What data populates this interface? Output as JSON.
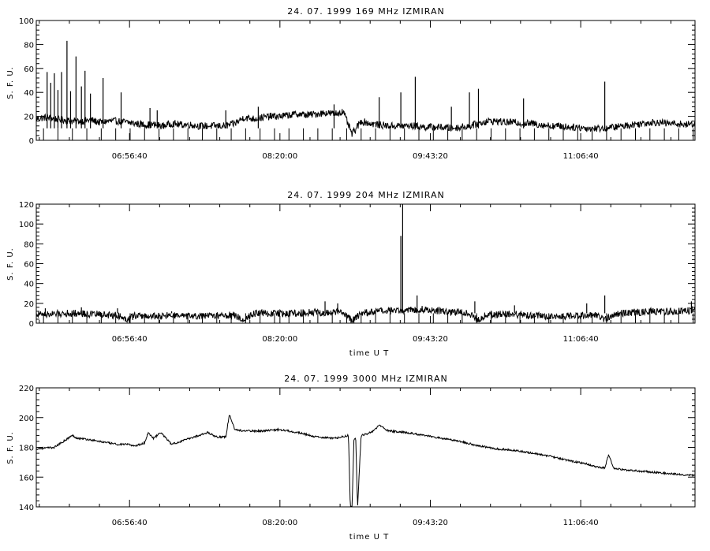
{
  "chart_data": [
    {
      "type": "line",
      "title": "24. 07. 1999   169 MHz   IZMIRAN",
      "xlabel": "",
      "ylabel": "S. F. U.",
      "ylim": [
        0,
        100
      ],
      "yticks": [
        0,
        20,
        40,
        60,
        80,
        100
      ],
      "xlim": [
        "06:05:00",
        "12:10:00"
      ],
      "xtick_labels": [
        "06:56:40",
        "08:20:00",
        "09:43:20",
        "11:06:40"
      ],
      "series": [
        {
          "x": [
            "06:05",
            "06:10",
            "06:15",
            "06:20",
            "06:25",
            "06:30",
            "06:35",
            "06:40",
            "06:45",
            "06:50",
            "06:55",
            "07:00",
            "07:05",
            "07:10",
            "07:15",
            "07:20",
            "07:25",
            "07:30",
            "07:35",
            "07:40",
            "07:45",
            "07:50",
            "07:55",
            "08:00",
            "08:05",
            "08:10",
            "08:15",
            "08:20",
            "08:25",
            "08:30",
            "08:35",
            "08:40",
            "08:45",
            "08:50",
            "08:55",
            "09:00",
            "09:05",
            "09:10",
            "09:15",
            "09:20",
            "09:25",
            "09:30",
            "09:35",
            "09:40",
            "09:45",
            "09:50",
            "09:55",
            "10:00",
            "10:05",
            "10:10",
            "10:15",
            "10:20",
            "10:25",
            "10:30",
            "10:35",
            "10:40",
            "10:45",
            "10:50",
            "10:55",
            "11:00",
            "11:05",
            "11:10",
            "11:15",
            "11:20",
            "11:25",
            "11:30",
            "11:35",
            "11:40",
            "11:45",
            "11:50",
            "11:55",
            "12:00",
            "12:05",
            "12:10"
          ],
          "y": [
            18,
            19,
            18,
            17,
            16,
            16,
            17,
            15,
            16,
            16,
            15,
            14,
            13,
            13,
            12,
            14,
            13,
            13,
            12,
            12,
            12,
            12,
            14,
            19,
            18,
            19,
            20,
            20,
            21,
            22,
            21,
            22,
            23,
            22,
            24,
            5,
            16,
            14,
            13,
            12,
            12,
            12,
            12,
            11,
            11,
            11,
            10,
            11,
            12,
            14,
            16,
            16,
            15,
            15,
            14,
            14,
            13,
            12,
            12,
            11,
            11,
            10,
            10,
            10,
            11,
            12,
            13,
            14,
            15,
            15,
            14,
            14,
            13,
            14
          ],
          "spikes": [
            {
              "x": "06:11",
              "y": 57
            },
            {
              "x": "06:13",
              "y": 48
            },
            {
              "x": "06:15",
              "y": 56
            },
            {
              "x": "06:17",
              "y": 42
            },
            {
              "x": "06:19",
              "y": 57
            },
            {
              "x": "06:22",
              "y": 83
            },
            {
              "x": "06:24",
              "y": 41
            },
            {
              "x": "06:27",
              "y": 70
            },
            {
              "x": "06:30",
              "y": 45
            },
            {
              "x": "06:32",
              "y": 58
            },
            {
              "x": "06:35",
              "y": 39
            },
            {
              "x": "06:42",
              "y": 52
            },
            {
              "x": "06:52",
              "y": 40
            },
            {
              "x": "07:08",
              "y": 27
            },
            {
              "x": "07:12",
              "y": 25
            },
            {
              "x": "07:50",
              "y": 25
            },
            {
              "x": "08:08",
              "y": 28
            },
            {
              "x": "08:50",
              "y": 30
            },
            {
              "x": "09:15",
              "y": 36
            },
            {
              "x": "09:27",
              "y": 40
            },
            {
              "x": "09:35",
              "y": 53
            },
            {
              "x": "09:55",
              "y": 28
            },
            {
              "x": "10:05",
              "y": 40
            },
            {
              "x": "10:10",
              "y": 43
            },
            {
              "x": "10:35",
              "y": 35
            },
            {
              "x": "11:20",
              "y": 49
            }
          ]
        }
      ]
    },
    {
      "type": "line",
      "title": "24. 07. 1999   204 MHz   IZMIRAN",
      "xlabel": "time  U T",
      "ylabel": "S. F. U.",
      "ylim": [
        0,
        120
      ],
      "yticks": [
        0,
        20,
        40,
        60,
        80,
        100,
        120
      ],
      "xlim": [
        "06:05:00",
        "12:10:00"
      ],
      "xtick_labels": [
        "06:56:40",
        "08:20:00",
        "09:43:20",
        "11:06:40"
      ],
      "series": [
        {
          "x": [
            "06:05",
            "06:10",
            "06:15",
            "06:20",
            "06:25",
            "06:30",
            "06:35",
            "06:40",
            "06:45",
            "06:50",
            "06:55",
            "07:00",
            "07:05",
            "07:10",
            "07:15",
            "07:20",
            "07:25",
            "07:30",
            "07:35",
            "07:40",
            "07:45",
            "07:50",
            "07:55",
            "08:00",
            "08:05",
            "08:10",
            "08:15",
            "08:20",
            "08:25",
            "08:30",
            "08:35",
            "08:40",
            "08:45",
            "08:50",
            "08:55",
            "09:00",
            "09:05",
            "09:10",
            "09:15",
            "09:20",
            "09:25",
            "09:30",
            "09:35",
            "09:40",
            "09:45",
            "09:50",
            "09:55",
            "10:00",
            "10:05",
            "10:10",
            "10:15",
            "10:20",
            "10:25",
            "10:30",
            "10:35",
            "10:40",
            "10:45",
            "10:50",
            "10:55",
            "11:00",
            "11:05",
            "11:10",
            "11:15",
            "11:20",
            "11:25",
            "11:30",
            "11:35",
            "11:40",
            "11:45",
            "11:50",
            "11:55",
            "12:00",
            "12:05",
            "12:10"
          ],
          "y": [
            9,
            9,
            9,
            10,
            10,
            10,
            9,
            9,
            8,
            8,
            4,
            8,
            7,
            7,
            7,
            8,
            7,
            7,
            7,
            7,
            8,
            8,
            8,
            3,
            10,
            10,
            10,
            10,
            10,
            10,
            11,
            11,
            10,
            11,
            11,
            2,
            10,
            11,
            12,
            12,
            13,
            13,
            14,
            14,
            13,
            12,
            11,
            11,
            10,
            3,
            9,
            9,
            9,
            9,
            8,
            8,
            7,
            7,
            7,
            7,
            8,
            8,
            8,
            4,
            9,
            10,
            11,
            11,
            12,
            12,
            12,
            12,
            12,
            14
          ],
          "spikes": [
            {
              "x": "06:10",
              "y": 15
            },
            {
              "x": "06:30",
              "y": 16
            },
            {
              "x": "06:50",
              "y": 15
            },
            {
              "x": "07:20",
              "y": 12
            },
            {
              "x": "08:10",
              "y": 14
            },
            {
              "x": "08:45",
              "y": 22
            },
            {
              "x": "08:52",
              "y": 20
            },
            {
              "x": "09:27",
              "y": 88
            },
            {
              "x": "09:28",
              "y": 122
            },
            {
              "x": "09:36",
              "y": 28
            },
            {
              "x": "10:08",
              "y": 22
            },
            {
              "x": "10:30",
              "y": 18
            },
            {
              "x": "11:10",
              "y": 20
            },
            {
              "x": "11:20",
              "y": 28
            },
            {
              "x": "12:08",
              "y": 22
            }
          ]
        }
      ]
    },
    {
      "type": "line",
      "title": "24. 07. 1999   3000 MHz   IZMIRAN",
      "xlabel": "time  U T",
      "ylabel": "S. F. U.",
      "ylim": [
        140,
        220
      ],
      "yticks": [
        140,
        160,
        180,
        200,
        220
      ],
      "xlim": [
        "06:05:00",
        "12:10:00"
      ],
      "xtick_labels": [
        "06:56:40",
        "08:20:00",
        "09:43:20",
        "11:06:40"
      ],
      "series": [
        {
          "x": [
            "06:05",
            "06:15",
            "06:20",
            "06:25",
            "06:28",
            "06:30",
            "06:35",
            "06:45",
            "06:50",
            "06:55",
            "07:00",
            "07:05",
            "07:07",
            "07:10",
            "07:12",
            "07:14",
            "07:20",
            "07:30",
            "07:35",
            "07:40",
            "07:45",
            "07:50",
            "07:52",
            "07:55",
            "08:00",
            "08:10",
            "08:20",
            "08:30",
            "08:40",
            "08:50",
            "08:58",
            "08:59",
            "09:00",
            "09:01",
            "09:02",
            "09:03",
            "09:05",
            "09:08",
            "09:10",
            "09:12",
            "09:15",
            "09:20",
            "09:30",
            "09:40",
            "09:50",
            "10:00",
            "10:10",
            "10:20",
            "10:30",
            "10:40",
            "10:50",
            "11:00",
            "11:10",
            "11:15",
            "11:20",
            "11:22",
            "11:25",
            "11:30",
            "11:40",
            "11:50",
            "12:00",
            "12:10"
          ],
          "y": [
            179,
            180,
            184,
            188,
            186,
            186,
            185,
            183,
            182,
            182,
            181,
            183,
            190,
            186,
            188,
            190,
            182,
            186,
            188,
            190,
            187,
            187,
            202,
            192,
            191,
            191,
            192,
            190,
            187,
            186,
            188,
            140,
            140,
            186,
            186,
            140,
            188,
            189,
            190,
            191,
            195,
            191,
            190,
            188,
            186,
            184,
            181,
            179,
            178,
            176,
            174,
            171,
            169,
            167,
            166,
            175,
            166,
            165,
            164,
            163,
            162,
            161
          ]
        }
      ]
    }
  ]
}
